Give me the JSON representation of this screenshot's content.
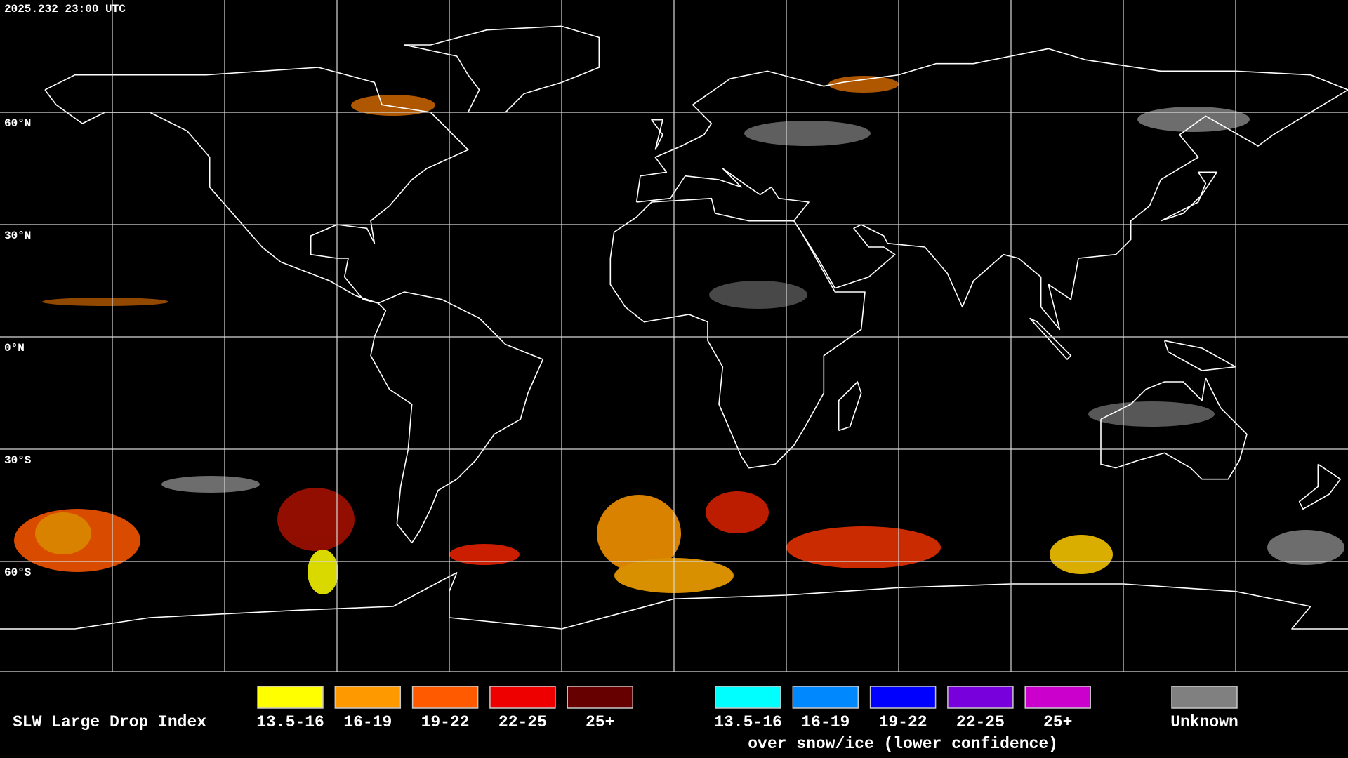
{
  "timestamp": "2025.232 23:00 UTC",
  "grid_labels": [
    "60°N",
    "30°N",
    "0°N",
    "30°S",
    "60°S"
  ],
  "legend": {
    "title": "SLW Large Drop Index",
    "groups": [
      {
        "items": [
          {
            "label": "13.5-16",
            "color": "#ffff00"
          },
          {
            "label": "16-19",
            "color": "#ff9900"
          },
          {
            "label": "19-22",
            "color": "#ff5a00"
          },
          {
            "label": "22-25",
            "color": "#ee0000"
          },
          {
            "label": "25+",
            "color": "#660000"
          }
        ]
      },
      {
        "items": [
          {
            "label": "13.5-16",
            "color": "#00ffff"
          },
          {
            "label": "16-19",
            "color": "#0088ff"
          },
          {
            "label": "19-22",
            "color": "#0000ff"
          },
          {
            "label": "22-25",
            "color": "#7700dd"
          },
          {
            "label": "25+",
            "color": "#cc00cc"
          }
        ],
        "caption": "over snow/ice (lower confidence)"
      }
    ],
    "unknown": {
      "label": "Unknown",
      "color": "#808080"
    }
  }
}
